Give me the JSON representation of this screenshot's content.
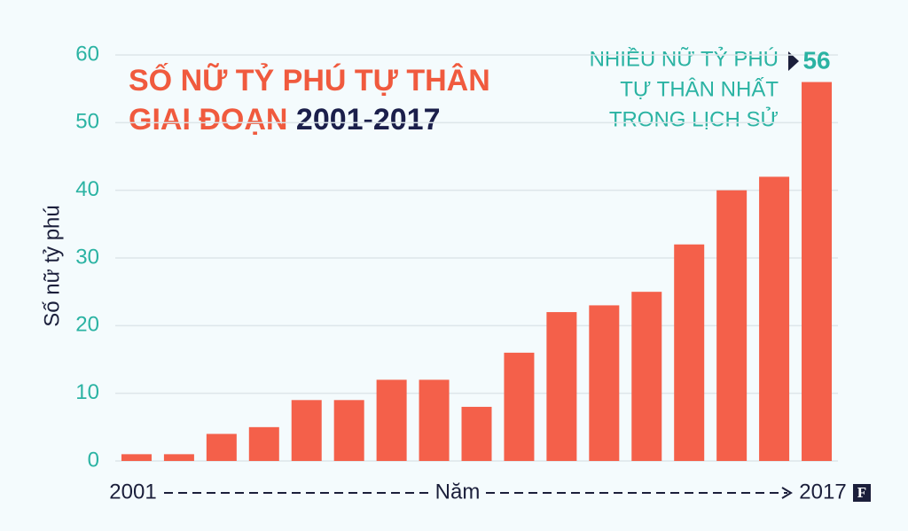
{
  "chart_data": {
    "type": "bar",
    "title_lines": [
      "SỐ NỮ TỶ PHÚ TỰ THÂN",
      "GIAI ĐOẠN",
      "2001-2017"
    ],
    "annotation_lines": [
      "NHIỀU NỮ TỶ PHÚ",
      "TỰ THÂN NHẤT",
      "TRONG LỊCH SỬ"
    ],
    "x_label": "Năm",
    "y_label": "Số nữ tỷ phú",
    "logo": "F",
    "categories": [
      "2001",
      null,
      null,
      null,
      null,
      null,
      null,
      null,
      null,
      null,
      null,
      null,
      null,
      null,
      null,
      null,
      "2017"
    ],
    "values": [
      1,
      1,
      4,
      5,
      9,
      9,
      12,
      12,
      8,
      16,
      22,
      23,
      25,
      32,
      40,
      42,
      56
    ],
    "color": "#f4604a",
    "ylim": [
      0,
      60
    ],
    "yticks": [
      0,
      10,
      20,
      30,
      40,
      50,
      60
    ],
    "grid": true
  }
}
